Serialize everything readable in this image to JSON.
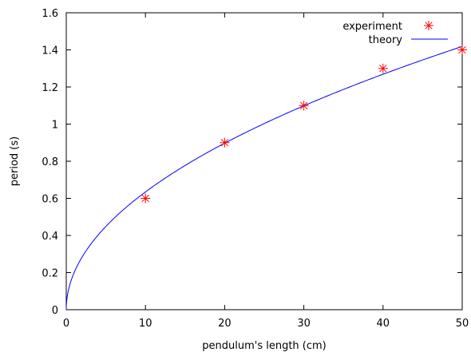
{
  "chart_data": {
    "type": "scatter",
    "xlabel": "pendulum's length (cm)",
    "ylabel": "period (s)",
    "xlim": [
      0,
      50
    ],
    "ylim": [
      0,
      1.6
    ],
    "x_ticks": [
      0,
      10,
      20,
      30,
      40,
      50
    ],
    "x_tick_labels": [
      "0",
      "10",
      "20",
      "30",
      "40",
      "50"
    ],
    "y_ticks": [
      0,
      0.2,
      0.4,
      0.6,
      0.8,
      1.0,
      1.2,
      1.4,
      1.6
    ],
    "y_tick_labels": [
      "0",
      "0.2",
      "0.4",
      "0.6",
      "0.8",
      "1",
      "1.2",
      "1.4",
      "1.6"
    ],
    "grid": false,
    "legend_position": "top-right",
    "series": [
      {
        "name": "experiment",
        "type": "scatter",
        "marker": "asterisk",
        "color": "#ff0000",
        "x": [
          10,
          20,
          30,
          40,
          50
        ],
        "y": [
          0.6,
          0.9,
          1.1,
          1.3,
          1.4
        ]
      },
      {
        "name": "theory",
        "type": "line",
        "color": "#0000ff",
        "function": "2*pi*sqrt(L/981)"
      }
    ]
  }
}
